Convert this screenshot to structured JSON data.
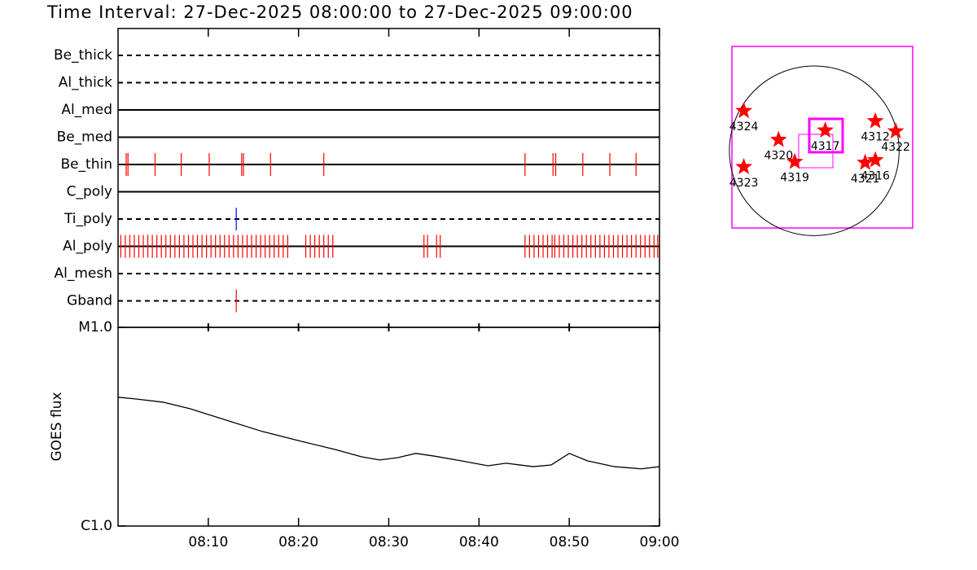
{
  "title": "Time Interval: 27-Dec-2025 08:00:00 to 27-Dec-2025 09:00:00",
  "chart_data": [
    {
      "type": "timeline",
      "xlim": [
        0,
        60
      ],
      "rows": [
        {
          "name": "Be_thick",
          "style": "dashed",
          "events": []
        },
        {
          "name": "Al_thick",
          "style": "dashed",
          "events": []
        },
        {
          "name": "Al_med",
          "style": "solid",
          "events": []
        },
        {
          "name": "Be_med",
          "style": "solid",
          "events": []
        },
        {
          "name": "Be_thin",
          "style": "solid",
          "color": "#ff0000",
          "events": [
            0.9,
            1.1,
            4.1,
            7.0,
            10.1,
            13.7,
            13.9,
            16.9,
            22.8,
            45.1,
            48.2,
            48.5,
            51.5,
            54.5,
            57.4
          ]
        },
        {
          "name": "C_poly",
          "style": "solid",
          "events": []
        },
        {
          "name": "Ti_poly",
          "style": "dashed",
          "color": "#0000ff",
          "events": [
            13.1
          ]
        },
        {
          "name": "Al_poly",
          "style": "solid",
          "color": "#ff0000",
          "events": [
            0.3,
            0.8,
            1.3,
            1.8,
            2.3,
            2.8,
            3.3,
            3.8,
            4.3,
            4.8,
            5.3,
            5.8,
            6.3,
            6.8,
            7.3,
            7.8,
            8.3,
            8.8,
            9.3,
            9.8,
            10.3,
            10.8,
            11.3,
            11.8,
            12.3,
            12.8,
            13.3,
            13.8,
            14.3,
            14.8,
            15.3,
            15.8,
            16.3,
            16.8,
            17.3,
            17.8,
            18.3,
            18.8,
            20.8,
            21.3,
            21.8,
            22.3,
            22.8,
            23.3,
            23.8,
            33.9,
            34.3,
            35.3,
            35.7,
            45.1,
            45.6,
            46.1,
            46.6,
            47.1,
            47.6,
            48.1,
            48.4,
            48.9,
            49.4,
            49.9,
            50.4,
            50.9,
            51.4,
            51.9,
            52.4,
            52.9,
            53.4,
            53.9,
            54.4,
            54.9,
            55.4,
            55.9,
            56.4,
            56.9,
            57.4,
            57.9,
            58.4,
            58.9,
            59.4,
            59.8
          ]
        },
        {
          "name": "Al_mesh",
          "style": "dashed",
          "events": []
        },
        {
          "name": "Gband",
          "style": "dashed",
          "color": "#ff0000",
          "events": [
            13.1
          ]
        }
      ]
    },
    {
      "type": "line",
      "y_label": "GOES flux",
      "log_y": true,
      "color": "#000000",
      "xlim": [
        0,
        60
      ],
      "xticks": [
        {
          "value": 10,
          "label": "08:10"
        },
        {
          "value": 20,
          "label": "08:20"
        },
        {
          "value": 30,
          "label": "08:30"
        },
        {
          "value": 40,
          "label": "08:40"
        },
        {
          "value": 50,
          "label": "08:50"
        },
        {
          "value": 60,
          "label": "09:00"
        }
      ],
      "ylim": [
        1e-06,
        1e-05
      ],
      "yticks": [
        {
          "value": 1e-06,
          "label": "C1.0"
        },
        {
          "value": 1e-05,
          "label": "M1.0"
        }
      ],
      "x": [
        0,
        2,
        5,
        8,
        12,
        16,
        20,
        24,
        27,
        29,
        31,
        33,
        35,
        38,
        41,
        43,
        46,
        48,
        50,
        52,
        55,
        58,
        60
      ],
      "values": [
        4.45e-06,
        4.36e-06,
        4.2e-06,
        3.89e-06,
        3.41e-06,
        2.99e-06,
        2.69e-06,
        2.43e-06,
        2.23e-06,
        2.15e-06,
        2.21e-06,
        2.32e-06,
        2.25e-06,
        2.13e-06,
        2.01e-06,
        2.07e-06,
        1.99e-06,
        2.03e-06,
        2.32e-06,
        2.13e-06,
        1.99e-06,
        1.94e-06,
        1.99e-06
      ]
    },
    {
      "type": "scatter",
      "color": "#ff0000",
      "xlim": [
        -0.97,
        1.16
      ],
      "ylim": [
        -0.91,
        1.23
      ],
      "labels": [
        "4324",
        "4320",
        "4319",
        "4317",
        "4312",
        "4322",
        "4321",
        "4316",
        "4323"
      ],
      "x": [
        -0.83,
        -0.42,
        -0.23,
        0.13,
        0.72,
        0.96,
        0.6,
        0.72,
        -0.83
      ],
      "y": [
        0.47,
        0.13,
        -0.13,
        0.24,
        0.35,
        0.23,
        -0.14,
        -0.11,
        -0.19
      ]
    }
  ]
}
